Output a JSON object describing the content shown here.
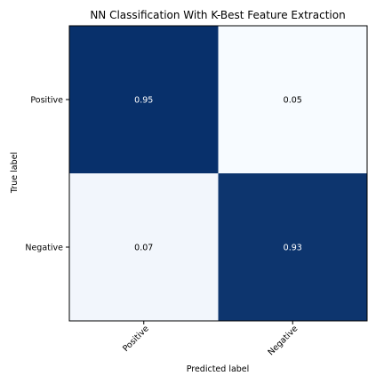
{
  "chart_data": {
    "type": "heatmap",
    "title": "NN Classification With K-Best Feature Extraction",
    "xlabel": "Predicted label",
    "ylabel": "True label",
    "x_categories": [
      "Positive",
      "Negative"
    ],
    "y_categories": [
      "Positive",
      "Negative"
    ],
    "values": [
      [
        0.95,
        0.05
      ],
      [
        0.07,
        0.93
      ]
    ],
    "cell_labels": [
      [
        "0.95",
        "0.05"
      ],
      [
        "0.07",
        "0.93"
      ]
    ],
    "colormap": "Blues",
    "color_low": "#f7fbff",
    "color_high": "#08306b",
    "value_range": [
      0.05,
      0.95
    ],
    "x_tick_rotation_deg": 45,
    "grid": false,
    "legend": "none"
  }
}
